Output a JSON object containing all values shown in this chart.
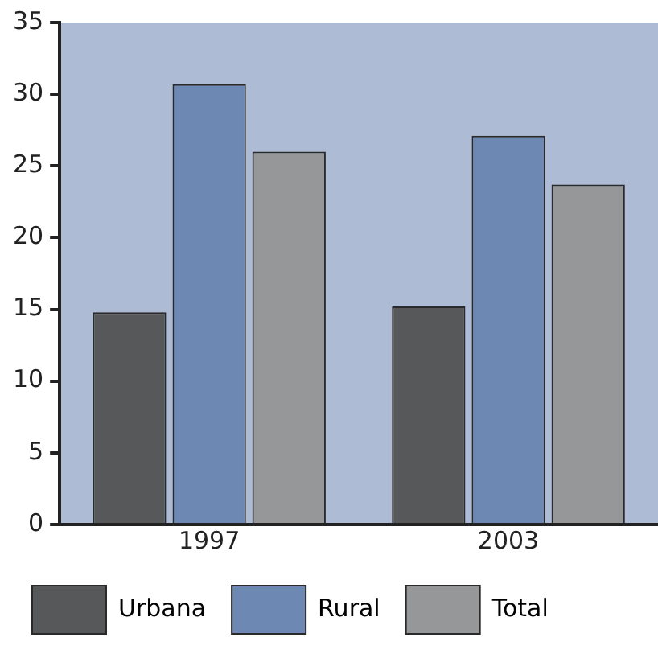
{
  "chart_data": {
    "type": "bar",
    "categories": [
      "1997",
      "2003"
    ],
    "series": [
      {
        "name": "Urbana",
        "color": "#575859",
        "values": [
          14.8,
          15.2
        ]
      },
      {
        "name": "Rural",
        "color": "#6d88b3",
        "values": [
          30.7,
          27.1
        ]
      },
      {
        "name": "Total",
        "color": "#969799",
        "values": [
          26.0,
          23.7
        ]
      }
    ],
    "ylim": [
      0,
      35
    ],
    "yticks": [
      0,
      5,
      10,
      15,
      20,
      25,
      30,
      35
    ],
    "grid": false,
    "legend": "bottom"
  }
}
